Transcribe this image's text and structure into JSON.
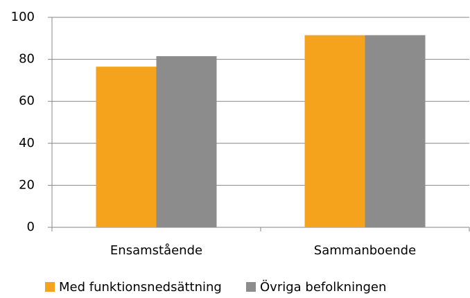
{
  "chart_data": {
    "type": "bar",
    "categories": [
      "Ensamstående",
      "Sammanboende"
    ],
    "series": [
      {
        "name": "Med funktionsnedsättning",
        "color": "#f5a31c",
        "values": [
          76.5,
          91.5
        ]
      },
      {
        "name": "Övriga befolkningen",
        "color": "#8c8c8c",
        "values": [
          81.5,
          91.5
        ]
      }
    ],
    "ylim": [
      0,
      100
    ],
    "yticks": [
      0,
      20,
      40,
      60,
      80,
      100
    ],
    "grid": true,
    "legend": "bottom"
  }
}
